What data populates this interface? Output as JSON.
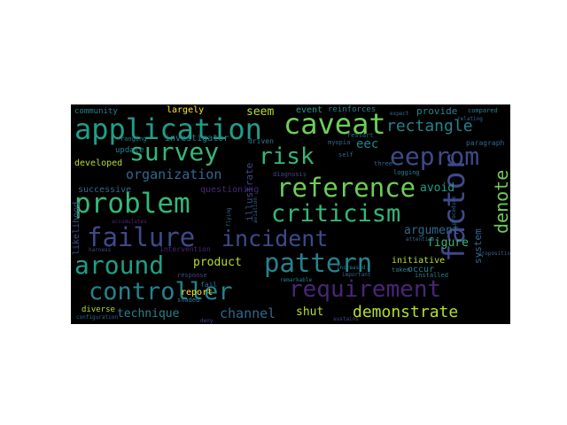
{
  "palette": {
    "background": "#000000",
    "colors": [
      "#440154",
      "#482677",
      "#3e4a89",
      "#31688e",
      "#26828e",
      "#1f9e89",
      "#35b779",
      "#6ece58",
      "#b5de2b",
      "#fde725"
    ]
  },
  "words": [
    {
      "text": "failure",
      "color": "#3e4a89"
    },
    {
      "text": "incident",
      "color": "#3e4a89"
    },
    {
      "text": "application",
      "color": "#1f9e89"
    },
    {
      "text": "caveat",
      "color": "#6ece58"
    },
    {
      "text": "factor",
      "color": "#3e4a89"
    },
    {
      "text": "problem",
      "color": "#35b779"
    },
    {
      "text": "survey",
      "color": "#35b779"
    },
    {
      "text": "risk",
      "color": "#35b779"
    },
    {
      "text": "eeprom",
      "color": "#3e4a89"
    },
    {
      "text": "reference",
      "color": "#6ece58"
    },
    {
      "text": "criticism",
      "color": "#35b779"
    },
    {
      "text": "around",
      "color": "#1f9e89"
    },
    {
      "text": "pattern",
      "color": "#26828e"
    },
    {
      "text": "controller",
      "color": "#26828e"
    },
    {
      "text": "requirement",
      "color": "#482677"
    },
    {
      "text": "rectangle",
      "color": "#26828e"
    },
    {
      "text": "denote",
      "color": "#6ece58"
    },
    {
      "text": "demonstrate",
      "color": "#b5de2b"
    },
    {
      "text": "organization",
      "color": "#31688e"
    },
    {
      "text": "channel",
      "color": "#31688e"
    },
    {
      "text": "technique",
      "color": "#26828e"
    },
    {
      "text": "product",
      "color": "#b5de2b"
    },
    {
      "text": "argument",
      "color": "#31688e"
    },
    {
      "text": "eec",
      "color": "#26828e"
    },
    {
      "text": "seem",
      "color": "#b5de2b"
    },
    {
      "text": "avoid",
      "color": "#1f9e89"
    },
    {
      "text": "figure",
      "color": "#35b779"
    },
    {
      "text": "system",
      "color": "#31688e"
    },
    {
      "text": "shut",
      "color": "#b5de2b"
    },
    {
      "text": "illustrate",
      "color": "#3e4a89"
    },
    {
      "text": "investigator",
      "color": "#26828e"
    },
    {
      "text": "successive",
      "color": "#31688e"
    },
    {
      "text": "developed",
      "color": "#b5de2b"
    },
    {
      "text": "likelihood",
      "color": "#3e4a89"
    },
    {
      "text": "provide",
      "color": "#26828e"
    },
    {
      "text": "update",
      "color": "#26828e"
    },
    {
      "text": "questioning",
      "color": "#482677"
    },
    {
      "text": "report",
      "color": "#fde725"
    },
    {
      "text": "event",
      "color": "#1f9e89"
    },
    {
      "text": "reinforces",
      "color": "#26828e"
    },
    {
      "text": "occur",
      "color": "#26828e"
    },
    {
      "text": "initiative",
      "color": "#b5de2b"
    },
    {
      "text": "community",
      "color": "#26828e"
    },
    {
      "text": "largely",
      "color": "#fde725"
    },
    {
      "text": "diverse",
      "color": "#b5de2b"
    },
    {
      "text": "ranging",
      "color": "#26828e"
    },
    {
      "text": "driven",
      "color": "#26828e"
    },
    {
      "text": "paragraph",
      "color": "#31688e"
    },
    {
      "text": "restart",
      "color": "#31688e"
    },
    {
      "text": "myopia",
      "color": "#31688e"
    },
    {
      "text": "compared",
      "color": "#26828e"
    },
    {
      "text": "diagnosis",
      "color": "#3e4a89"
    },
    {
      "text": "intervention",
      "color": "#482677"
    },
    {
      "text": "accumulates",
      "color": "#482677"
    },
    {
      "text": "shaded",
      "color": "#26828e"
    },
    {
      "text": "fail",
      "color": "#31688e"
    },
    {
      "text": "response",
      "color": "#3e4a89"
    },
    {
      "text": "harness",
      "color": "#3e4a89"
    },
    {
      "text": "taken",
      "color": "#26828e"
    },
    {
      "text": "installed",
      "color": "#26828e"
    },
    {
      "text": "increased",
      "color": "#26828e"
    },
    {
      "text": "configuration",
      "color": "#31688e"
    },
    {
      "text": "logging",
      "color": "#26828e"
    },
    {
      "text": "self",
      "color": "#31688e"
    },
    {
      "text": "three",
      "color": "#31688e"
    },
    {
      "text": "important",
      "color": "#31688e"
    },
    {
      "text": "procedure",
      "color": "#31688e"
    },
    {
      "text": "flying",
      "color": "#31688e"
    },
    {
      "text": "deny",
      "color": "#3e4a89"
    },
    {
      "text": "aviation",
      "color": "#31688e"
    },
    {
      "text": "remarkable",
      "color": "#26828e"
    },
    {
      "text": "sustains",
      "color": "#3e4a89"
    },
    {
      "text": "attention",
      "color": "#31688e"
    },
    {
      "text": "relating",
      "color": "#31688e"
    },
    {
      "text": "expect",
      "color": "#31688e"
    },
    {
      "text": "proposition",
      "color": "#31688e"
    }
  ]
}
